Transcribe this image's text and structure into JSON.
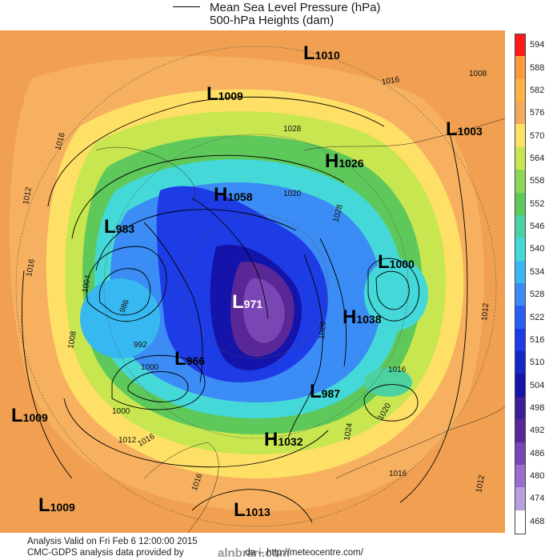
{
  "legend": {
    "line1": "Mean Sea Level Pressure (hPa)",
    "line2": "500-hPa Heights (dam)"
  },
  "colorbar": {
    "labels": [
      "594",
      "588",
      "582",
      "576",
      "570",
      "564",
      "558",
      "552",
      "546",
      "540",
      "534",
      "528",
      "522",
      "516",
      "510",
      "504",
      "498",
      "492",
      "486",
      "480",
      "474",
      "468"
    ],
    "colors": [
      "#ff1a1a",
      "#ff9a3c",
      "#ffb347",
      "#f6a95a",
      "#ffe066",
      "#c8e650",
      "#8ed65a",
      "#5ec85a",
      "#4cd2a0",
      "#45d8d8",
      "#38b8f0",
      "#3c8cf5",
      "#2a5ef0",
      "#1e3ce6",
      "#1428c8",
      "#1414aa",
      "#3c1e96",
      "#5a2896",
      "#7a46b4",
      "#9a6ecc",
      "#b8a0de",
      "#ffffff"
    ]
  },
  "pressure_labels": [
    {
      "letter": "L",
      "value": "1010"
    },
    {
      "letter": "L",
      "value": "1009"
    },
    {
      "letter": "L",
      "value": "1003"
    },
    {
      "letter": "H",
      "value": "1026"
    },
    {
      "letter": "H",
      "value": "1058"
    },
    {
      "letter": "L",
      "value": "983"
    },
    {
      "letter": "L",
      "value": "1000"
    },
    {
      "letter": "L",
      "value": "971"
    },
    {
      "letter": "H",
      "value": "1038"
    },
    {
      "letter": "L",
      "value": "966"
    },
    {
      "letter": "L",
      "value": "987"
    },
    {
      "letter": "L",
      "value": "1009"
    },
    {
      "letter": "H",
      "value": "1032"
    },
    {
      "letter": "L",
      "value": "1009"
    },
    {
      "letter": "L",
      "value": "1013"
    }
  ],
  "contour_labels": [
    "1016",
    "1008",
    "1016",
    "1028",
    "1020",
    "1012",
    "1016",
    "1004",
    "1028",
    "992",
    "1000",
    "986",
    "1000",
    "1012",
    "1016",
    "1016",
    "1020",
    "1024",
    "1012",
    "1016",
    "1012",
    "1016",
    "1008",
    "1020"
  ],
  "footer": {
    "line1": "Analysis Valid on Fri Feb  6 12:00:00 2015",
    "line2": "CMC-GDPS analysis data provided by",
    "line2_tail": "da -- http://meteocentre.com/",
    "watermark": "alnbrari.com"
  }
}
